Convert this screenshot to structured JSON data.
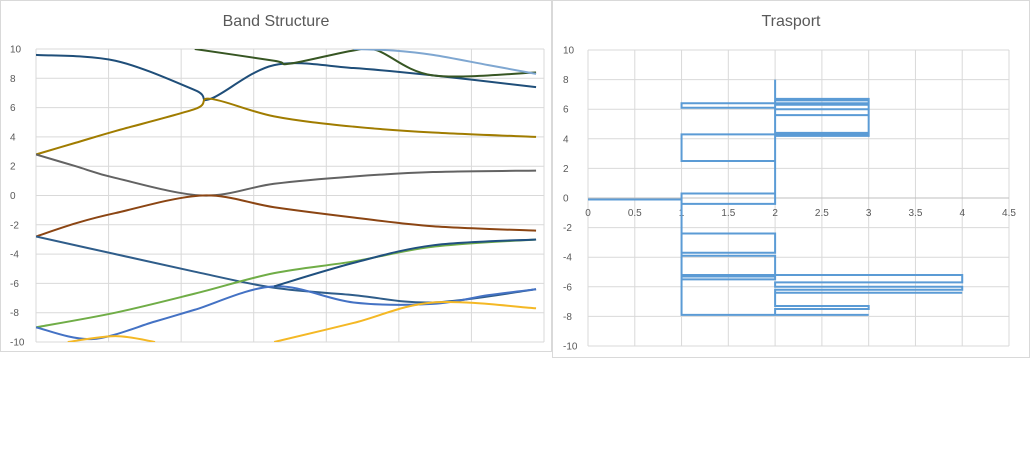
{
  "chart_data": [
    {
      "type": "line",
      "title": "Band Structure",
      "xlabel": "",
      "ylabel": "",
      "xlim": [
        0,
        6.4
      ],
      "ylim": [
        -10,
        10
      ],
      "yticks": [
        10,
        8,
        6,
        4,
        2,
        0,
        -2,
        -4,
        -6,
        -8,
        -10
      ],
      "grid": true,
      "legend": "none",
      "series": [
        {
          "color": "#1F4E79",
          "x": [
            0,
            1,
            2,
            2.2,
            3,
            4,
            5,
            6.3
          ],
          "y": [
            9.6,
            9.2,
            7.2,
            6.6,
            8.9,
            8.7,
            8.2,
            7.4
          ]
        },
        {
          "color": "#375623",
          "x": [
            2,
            3,
            3.2,
            4,
            4.3,
            5,
            6.3
          ],
          "y": [
            10,
            9.2,
            9.0,
            9.9,
            9.9,
            8.2,
            8.4
          ]
        },
        {
          "color": "#7FA7D1",
          "x": [
            4,
            4.5,
            5,
            5.7,
            6.3
          ],
          "y": [
            10,
            9.9,
            9.6,
            8.9,
            8.3
          ]
        },
        {
          "color": "#A07C00",
          "x": [
            0,
            0.5,
            1,
            2,
            2.2,
            3,
            4,
            5,
            6.3
          ],
          "y": [
            2.8,
            3.6,
            4.4,
            5.9,
            6.6,
            5.4,
            4.7,
            4.3,
            4.0
          ]
        },
        {
          "color": "#636363",
          "x": [
            0,
            0.5,
            1,
            2.1,
            3,
            4,
            5,
            6.3
          ],
          "y": [
            2.8,
            2.0,
            1.2,
            0,
            0.8,
            1.3,
            1.6,
            1.7
          ]
        },
        {
          "color": "#8B4513",
          "x": [
            0,
            0.5,
            1,
            2.1,
            3,
            4,
            5,
            6.3
          ],
          "y": [
            -2.8,
            -1.9,
            -1.2,
            0,
            -0.8,
            -1.5,
            -2.1,
            -2.4
          ]
        },
        {
          "color": "#2F5D8A",
          "x": [
            0,
            1,
            2,
            3,
            4,
            5,
            6.3
          ],
          "y": [
            -2.8,
            -4.0,
            -5.2,
            -6.3,
            -6.8,
            -7.3,
            -6.4
          ]
        },
        {
          "color": "#70AD47",
          "x": [
            0,
            1,
            2,
            3,
            4,
            5,
            6.3
          ],
          "y": [
            -9.0,
            -8.0,
            -6.7,
            -5.3,
            -4.5,
            -3.5,
            -3.0
          ]
        },
        {
          "color": "#4472C4",
          "x": [
            0,
            0.7,
            1.5,
            2,
            3,
            4,
            5,
            5.7,
            6.3
          ],
          "y": [
            -9.0,
            -9.8,
            -8.6,
            -7.8,
            -6.2,
            -7.3,
            -7.4,
            -6.8,
            -6.4
          ]
        },
        {
          "color": "#20507F",
          "x": [
            3,
            4,
            5,
            6.3
          ],
          "y": [
            -6.2,
            -4.6,
            -3.4,
            -3.0
          ]
        },
        {
          "color": "#F4B825",
          "x": [
            0.4,
            1,
            1.5
          ],
          "y": [
            -10,
            -9.6,
            -10
          ]
        },
        {
          "color": "#F4B825",
          "x": [
            3,
            4,
            5,
            6.3
          ],
          "y": [
            -10,
            -8.7,
            -7.3,
            -7.7
          ]
        }
      ]
    },
    {
      "type": "line",
      "title": "Trasport",
      "xlabel": "",
      "ylabel": "",
      "xlim": [
        0,
        4.5
      ],
      "ylim": [
        -10,
        10
      ],
      "xticks": [
        "0",
        "0.5",
        "1",
        "1.5",
        "2",
        "2.5",
        "3",
        "3.5",
        "4",
        "4.5"
      ],
      "yticks": [
        10,
        8,
        6,
        4,
        2,
        0,
        -2,
        -4,
        -6,
        -8,
        -10
      ],
      "grid": true,
      "legend": "none",
      "series": [
        {
          "color": "#5B9BD5",
          "x": [
            0,
            1,
            1,
            2,
            2,
            1,
            1,
            2,
            2,
            1,
            1,
            2,
            2,
            3,
            3,
            2,
            2,
            3,
            3,
            2,
            2,
            3,
            3,
            2,
            2,
            3,
            3,
            2,
            2,
            3,
            3,
            2,
            2,
            2,
            2,
            1,
            1,
            2,
            2,
            1,
            1,
            2,
            2,
            1,
            1,
            2,
            2,
            1,
            1,
            2,
            2,
            1,
            1,
            2,
            2,
            4,
            4,
            2,
            2,
            4,
            4,
            2,
            2,
            4,
            4,
            2,
            2,
            3,
            3,
            2,
            2,
            3,
            3,
            1,
            1,
            0
          ],
          "y": [
            -0.1,
            -0.1,
            0.3,
            0.3,
            2.5,
            2.5,
            4.3,
            4.3,
            6.1,
            6.1,
            6.4,
            6.4,
            6.6,
            6.6,
            6.4,
            6.4,
            6.3,
            6.3,
            6.0,
            6.0,
            5.6,
            5.6,
            4.4,
            4.4,
            4.3,
            4.3,
            4.2,
            4.2,
            5.6,
            5.6,
            6.7,
            6.7,
            8.0,
            8.0,
            -0.4,
            -0.4,
            -2.4,
            -2.4,
            -3.7,
            -3.7,
            -3.9,
            -3.9,
            -5.3,
            -5.3,
            -5.5,
            -5.5,
            -5.3,
            -5.3,
            -5.3,
            -5.3,
            -5.2,
            -5.2,
            -5.2,
            -5.2,
            -5.2,
            -5.2,
            -5.7,
            -5.7,
            -6.0,
            -6.0,
            -6.2,
            -6.2,
            -6.4,
            -6.4,
            -6.4,
            -6.4,
            -7.3,
            -7.3,
            -7.5,
            -7.5,
            -7.9,
            -7.9,
            -7.9,
            -7.9,
            -0.1,
            -0.1
          ]
        }
      ]
    }
  ]
}
